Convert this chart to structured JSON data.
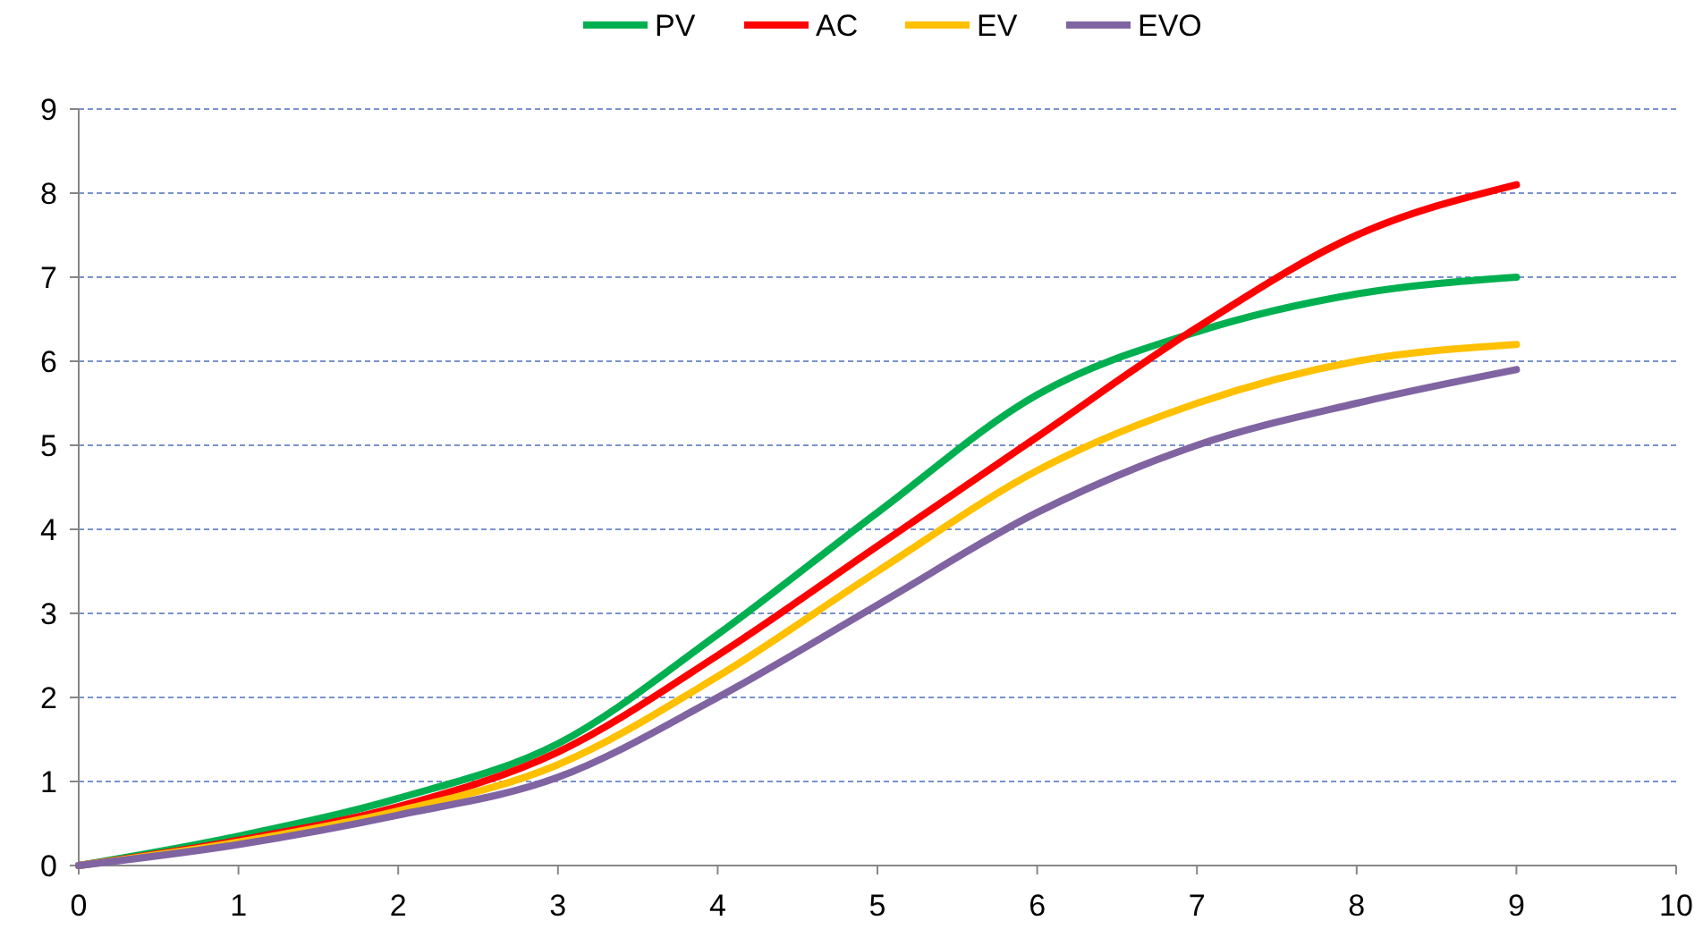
{
  "chart_data": {
    "type": "line",
    "x": [
      0,
      1,
      2,
      3,
      4,
      5,
      6,
      7,
      8,
      9
    ],
    "series": [
      {
        "name": "PV",
        "color": "#00b050",
        "values": [
          0,
          0.35,
          0.8,
          1.45,
          2.75,
          4.2,
          5.6,
          6.35,
          6.8,
          7.0
        ]
      },
      {
        "name": "AC",
        "color": "#ff0000",
        "values": [
          0,
          0.3,
          0.7,
          1.35,
          2.5,
          3.8,
          5.1,
          6.4,
          7.5,
          8.1
        ]
      },
      {
        "name": "EV",
        "color": "#ffc000",
        "values": [
          0,
          0.28,
          0.65,
          1.2,
          2.25,
          3.5,
          4.7,
          5.5,
          6.0,
          6.2
        ]
      },
      {
        "name": "EVO",
        "color": "#8064a2",
        "values": [
          0,
          0.25,
          0.6,
          1.05,
          2.0,
          3.1,
          4.2,
          5.0,
          5.5,
          5.9
        ]
      }
    ],
    "xlim": [
      0,
      10
    ],
    "xticks": [
      0,
      1,
      2,
      3,
      4,
      5,
      6,
      7,
      8,
      9,
      10
    ],
    "ylim": [
      0,
      9
    ],
    "yticks": [
      0,
      1,
      2,
      3,
      4,
      5,
      6,
      7,
      8,
      9
    ],
    "grid": "y",
    "legend": "top",
    "marker": "none",
    "line_style": "solid"
  }
}
